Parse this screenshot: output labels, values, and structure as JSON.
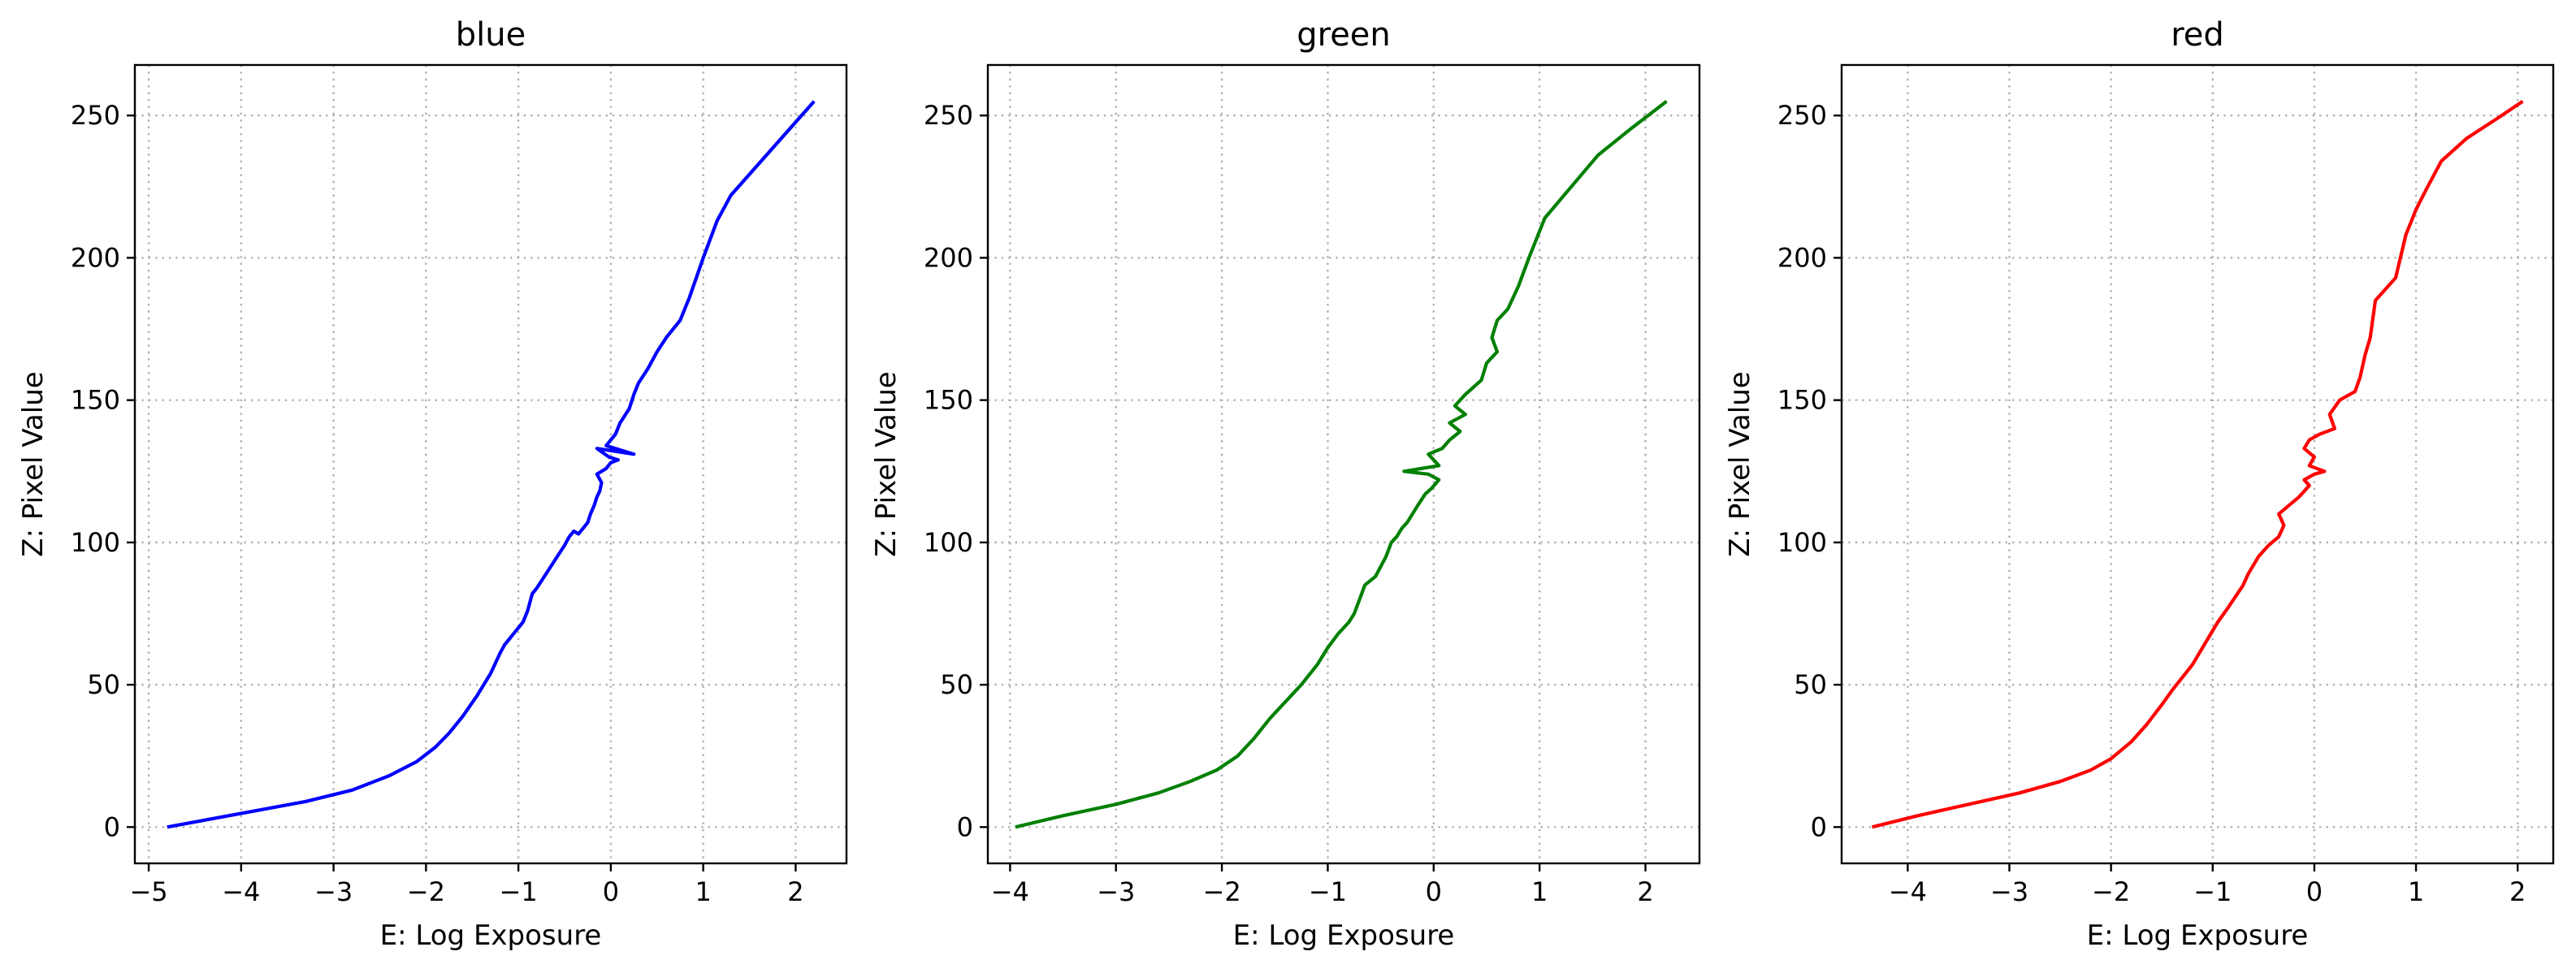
{
  "chart_data": [
    {
      "type": "line",
      "title": "blue",
      "xlabel": "E: Log Exposure",
      "ylabel": "Z: Pixel Value",
      "xlim": [
        -5.15,
        2.55
      ],
      "ylim": [
        -12.75,
        267.75
      ],
      "xticks": [
        -5,
        -4,
        -3,
        -2,
        -1,
        0,
        1,
        2
      ],
      "yticks": [
        0,
        50,
        100,
        150,
        200,
        250
      ],
      "grid": true,
      "color": "#0000ff",
      "series": [
        {
          "x": [
            -4.8,
            -4.3,
            -3.8,
            -3.3,
            -2.8,
            -2.4,
            -2.1,
            -1.9,
            -1.75,
            -1.6,
            -1.45,
            -1.3,
            -1.2,
            -1.15,
            -1.1,
            -1.05,
            -0.95,
            -0.9,
            -0.85,
            -0.8,
            -0.7,
            -0.6,
            -0.5,
            -0.45,
            -0.4,
            -0.35,
            -0.3,
            -0.25,
            -0.22,
            -0.18,
            -0.15,
            -0.12,
            -0.1,
            -0.15,
            -0.05,
            0.0,
            0.08,
            -0.02,
            -0.15,
            0.25,
            -0.05,
            0.05,
            0.1,
            0.2,
            0.25,
            0.3,
            0.4,
            0.5,
            0.6,
            0.75,
            0.85,
            1.0,
            1.15,
            1.3,
            1.6,
            1.9,
            2.2
          ],
          "y": [
            0,
            3,
            6,
            9,
            13,
            18,
            23,
            28,
            33,
            39,
            46,
            54,
            61,
            64,
            66,
            68,
            72,
            76,
            82,
            84,
            89,
            94,
            99,
            102,
            104,
            103,
            105,
            107,
            110,
            113,
            116,
            118,
            121,
            124,
            126,
            128,
            129,
            130,
            133,
            131,
            134,
            138,
            142,
            147,
            152,
            156,
            161,
            167,
            172,
            178,
            186,
            200,
            213,
            222,
            233,
            244,
            255
          ]
        }
      ]
    },
    {
      "type": "line",
      "title": "green",
      "xlabel": "E: Log Exposure",
      "ylabel": "Z: Pixel Value",
      "xlim": [
        -4.21,
        2.51
      ],
      "ylim": [
        -12.75,
        267.75
      ],
      "xticks": [
        -4,
        -3,
        -2,
        -1,
        0,
        1,
        2
      ],
      "yticks": [
        0,
        50,
        100,
        150,
        200,
        250
      ],
      "grid": true,
      "color": "#008000",
      "series": [
        {
          "x": [
            -3.95,
            -3.5,
            -3.0,
            -2.6,
            -2.3,
            -2.05,
            -1.85,
            -1.7,
            -1.55,
            -1.4,
            -1.25,
            -1.1,
            -1.0,
            -0.9,
            -0.8,
            -0.75,
            -0.7,
            -0.65,
            -0.55,
            -0.45,
            -0.4,
            -0.35,
            -0.3,
            -0.25,
            -0.2,
            -0.15,
            -0.08,
            -0.02,
            0.05,
            -0.05,
            -0.28,
            0.05,
            -0.05,
            0.08,
            0.15,
            0.25,
            0.15,
            0.3,
            0.2,
            0.3,
            0.45,
            0.5,
            0.6,
            0.55,
            0.6,
            0.7,
            0.8,
            0.9,
            1.05,
            1.3,
            1.55,
            1.85,
            2.2
          ],
          "y": [
            0,
            4,
            8,
            12,
            16,
            20,
            25,
            31,
            38,
            44,
            50,
            57,
            63,
            68,
            72,
            75,
            80,
            85,
            88,
            95,
            100,
            102,
            105,
            107,
            110,
            113,
            117,
            119,
            122,
            124,
            125,
            127,
            131,
            133,
            136,
            139,
            142,
            145,
            148,
            152,
            157,
            163,
            167,
            172,
            178,
            182,
            190,
            200,
            214,
            225,
            236,
            245,
            255
          ]
        }
      ]
    },
    {
      "type": "line",
      "title": "red",
      "xlabel": "E: Log Exposure",
      "ylabel": "Z: Pixel Value",
      "xlim": [
        -4.65,
        2.35
      ],
      "ylim": [
        -12.75,
        267.75
      ],
      "xticks": [
        -4,
        -3,
        -2,
        -1,
        0,
        1,
        2
      ],
      "yticks": [
        0,
        50,
        100,
        150,
        200,
        250
      ],
      "grid": true,
      "color": "#ff0000",
      "series": [
        {
          "x": [
            -4.35,
            -3.9,
            -3.4,
            -2.9,
            -2.5,
            -2.2,
            -2.0,
            -1.8,
            -1.65,
            -1.5,
            -1.4,
            -1.2,
            -1.05,
            -0.95,
            -0.85,
            -0.7,
            -0.65,
            -0.55,
            -0.45,
            -0.35,
            -0.3,
            -0.35,
            -0.25,
            -0.15,
            -0.05,
            -0.1,
            0.0,
            0.1,
            -0.05,
            0.0,
            -0.1,
            -0.05,
            0.05,
            0.2,
            0.15,
            0.25,
            0.4,
            0.45,
            0.5,
            0.55,
            0.6,
            0.8,
            0.9,
            1.0,
            1.1,
            1.25,
            1.5,
            1.8,
            2.05
          ],
          "y": [
            0,
            4,
            8,
            12,
            16,
            20,
            24,
            30,
            36,
            43,
            48,
            57,
            66,
            72,
            77,
            85,
            89,
            95,
            99,
            102,
            106,
            110,
            113,
            116,
            120,
            122,
            124,
            125,
            127,
            130,
            133,
            136,
            138,
            140,
            145,
            150,
            153,
            158,
            166,
            172,
            185,
            193,
            208,
            217,
            224,
            234,
            242,
            249,
            255
          ]
        }
      ]
    }
  ]
}
